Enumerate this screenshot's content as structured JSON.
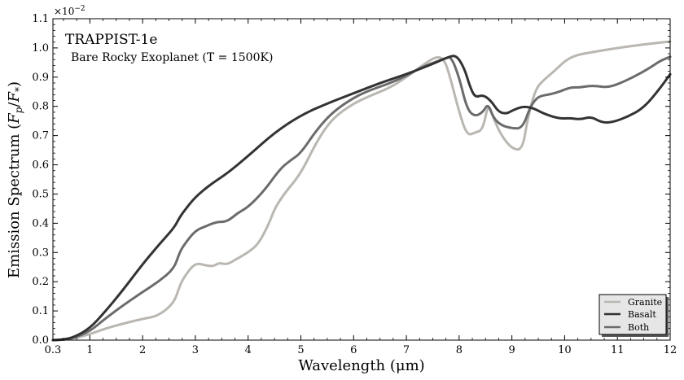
{
  "chart_data": {
    "type": "line",
    "title": "TRAPPIST-1e",
    "subtitle": "Bare Rocky Exoplanet (T = 1500K)",
    "xlabel": "Wavelength (μm)",
    "ylabel_main": "Emission Spectrum (",
    "ylabel_math": "F",
    "ylabel_sub_p": "p",
    "ylabel_slash": "/",
    "ylabel_math2": "F",
    "ylabel_sub_star": "*",
    "ylabel_close": ")",
    "sci_prefix": "×10",
    "sci_exponent": "−2",
    "xlim": [
      0.3,
      12
    ],
    "ylim": [
      0.0,
      1.1
    ],
    "x_ticks": [
      0.3,
      1,
      2,
      3,
      4,
      5,
      6,
      7,
      8,
      9,
      10,
      11,
      12
    ],
    "x_tick_labels": [
      "0.3",
      "1",
      "2",
      "3",
      "4",
      "5",
      "6",
      "7",
      "8",
      "9",
      "10",
      "11",
      "12"
    ],
    "y_ticks": [
      0.0,
      0.1,
      0.2,
      0.3,
      0.4,
      0.5,
      0.6,
      0.7,
      0.8,
      0.9,
      1.0,
      1.1
    ],
    "y_tick_labels": [
      "0.0",
      "0.1",
      "0.2",
      "0.3",
      "0.4",
      "0.5",
      "0.6",
      "0.7",
      "0.8",
      "0.9",
      "1.0",
      "1.1"
    ],
    "legend_position": "bottom-right",
    "series": [
      {
        "name": "Granite",
        "color": "#bab7b2",
        "x": [
          0.3,
          0.5,
          0.7,
          1.0,
          1.3,
          1.6,
          2.0,
          2.3,
          2.6,
          2.7,
          2.8,
          3.0,
          3.2,
          3.35,
          3.45,
          3.6,
          3.8,
          4.0,
          4.2,
          4.4,
          4.5,
          4.7,
          5.0,
          5.3,
          5.6,
          6.0,
          6.3,
          6.7,
          7.0,
          7.3,
          7.55,
          7.7,
          7.8,
          8.0,
          8.15,
          8.3,
          8.45,
          8.55,
          8.65,
          8.8,
          9.0,
          9.2,
          9.3,
          9.45,
          9.6,
          9.8,
          10.0,
          10.2,
          10.5,
          11.0,
          11.5,
          12.0
        ],
        "y": [
          0.0,
          0.001,
          0.006,
          0.02,
          0.04,
          0.055,
          0.073,
          0.083,
          0.128,
          0.185,
          0.22,
          0.265,
          0.255,
          0.253,
          0.265,
          0.258,
          0.28,
          0.3,
          0.33,
          0.4,
          0.45,
          0.505,
          0.57,
          0.68,
          0.76,
          0.81,
          0.835,
          0.865,
          0.9,
          0.94,
          0.97,
          0.965,
          0.92,
          0.78,
          0.7,
          0.71,
          0.72,
          0.81,
          0.76,
          0.7,
          0.655,
          0.65,
          0.76,
          0.86,
          0.89,
          0.92,
          0.955,
          0.975,
          0.985,
          1.0,
          1.012,
          1.022
        ]
      },
      {
        "name": "Basalt",
        "color": "#333333",
        "x": [
          0.3,
          0.5,
          0.7,
          1.0,
          1.3,
          1.6,
          2.0,
          2.3,
          2.6,
          2.7,
          2.8,
          3.0,
          3.3,
          3.6,
          4.0,
          4.5,
          5.0,
          5.5,
          6.0,
          6.5,
          7.0,
          7.5,
          7.8,
          7.95,
          8.1,
          8.2,
          8.3,
          8.45,
          8.6,
          8.75,
          8.9,
          9.0,
          9.2,
          9.4,
          9.6,
          9.9,
          10.1,
          10.3,
          10.5,
          10.7,
          10.9,
          11.2,
          11.5,
          11.8,
          12.0
        ],
        "y": [
          0.0,
          0.002,
          0.01,
          0.04,
          0.1,
          0.165,
          0.26,
          0.325,
          0.385,
          0.42,
          0.445,
          0.49,
          0.535,
          0.57,
          0.63,
          0.71,
          0.77,
          0.81,
          0.845,
          0.88,
          0.91,
          0.945,
          0.97,
          0.975,
          0.93,
          0.87,
          0.83,
          0.84,
          0.82,
          0.78,
          0.775,
          0.785,
          0.8,
          0.795,
          0.775,
          0.758,
          0.76,
          0.755,
          0.765,
          0.745,
          0.745,
          0.765,
          0.795,
          0.86,
          0.91
        ]
      },
      {
        "name": "Both",
        "color": "#6b6b6b",
        "x": [
          0.3,
          0.5,
          0.7,
          1.0,
          1.3,
          1.6,
          2.0,
          2.3,
          2.6,
          2.7,
          2.8,
          3.0,
          3.2,
          3.4,
          3.6,
          3.8,
          4.0,
          4.3,
          4.6,
          4.8,
          5.0,
          5.3,
          5.6,
          6.0,
          6.3,
          6.7,
          7.0,
          7.3,
          7.6,
          7.75,
          7.85,
          8.0,
          8.15,
          8.3,
          8.45,
          8.55,
          8.65,
          8.8,
          9.0,
          9.2,
          9.35,
          9.5,
          9.7,
          9.9,
          10.1,
          10.3,
          10.45,
          10.6,
          10.8,
          11.0,
          11.3,
          11.6,
          11.8,
          12.0
        ],
        "y": [
          0.0,
          0.001,
          0.008,
          0.03,
          0.075,
          0.115,
          0.165,
          0.2,
          0.245,
          0.3,
          0.33,
          0.375,
          0.39,
          0.405,
          0.405,
          0.435,
          0.455,
          0.51,
          0.585,
          0.615,
          0.64,
          0.72,
          0.78,
          0.83,
          0.855,
          0.88,
          0.905,
          0.935,
          0.955,
          0.965,
          0.97,
          0.9,
          0.79,
          0.765,
          0.78,
          0.81,
          0.76,
          0.735,
          0.725,
          0.725,
          0.8,
          0.835,
          0.84,
          0.85,
          0.865,
          0.865,
          0.87,
          0.87,
          0.865,
          0.875,
          0.9,
          0.93,
          0.955,
          0.97
        ]
      }
    ]
  }
}
